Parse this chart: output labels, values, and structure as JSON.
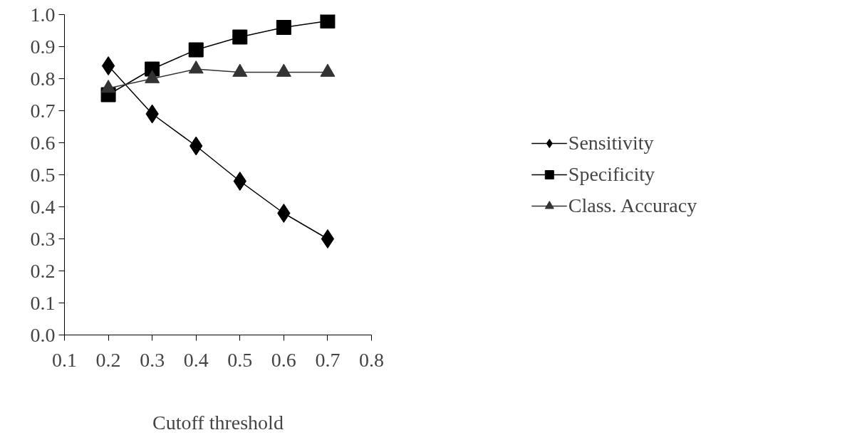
{
  "chart_data": {
    "type": "line",
    "xlabel": "Cutoff threshold",
    "x": [
      0.2,
      0.3,
      0.4,
      0.5,
      0.6,
      0.7
    ],
    "series": [
      {
        "name": "Sensitivity",
        "color": "#000000",
        "marker": "diamond",
        "values": [
          0.84,
          0.69,
          0.59,
          0.48,
          0.38,
          0.3
        ]
      },
      {
        "name": "Specificity",
        "color": "#000000",
        "marker": "square",
        "values": [
          0.75,
          0.83,
          0.89,
          0.93,
          0.96,
          0.98
        ]
      },
      {
        "name": "Class. Accuracy",
        "color": "#333333",
        "marker": "triangle",
        "values": [
          0.77,
          0.8,
          0.83,
          0.82,
          0.82,
          0.82
        ]
      }
    ],
    "xlim": [
      0.1,
      0.8
    ],
    "xticks": [
      0.1,
      0.2,
      0.3,
      0.4,
      0.5,
      0.6,
      0.7,
      0.8
    ],
    "ylim": [
      0,
      1
    ],
    "yticks": [
      {
        "value": 0,
        "label": "0.0"
      },
      0.1,
      0.2,
      0.3,
      0.4,
      0.5,
      0.6,
      0.7,
      0.8,
      0.9,
      {
        "value": 1,
        "label": "1.0"
      }
    ],
    "grid": false,
    "legend": "right",
    "line_style": "solid"
  }
}
